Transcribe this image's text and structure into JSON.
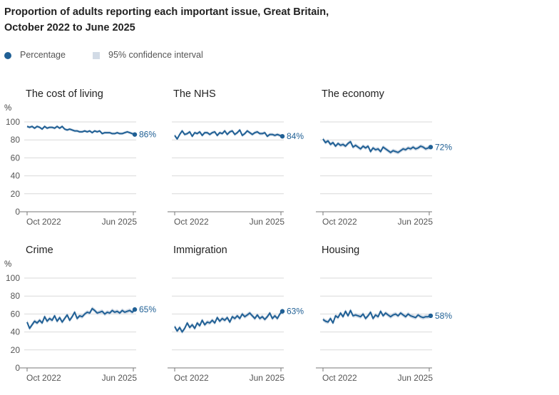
{
  "title_line1": "Proportion of adults reporting each important issue, Great Britain,",
  "title_line2": "October 2022 to June 2025",
  "legend": {
    "percentage": "Percentage",
    "ci": "95% confidence interval"
  },
  "colors": {
    "line": "#206095",
    "ci": "#d2dbe6",
    "grid": "#d9d9d9",
    "axis": "#777777",
    "label": "#206095"
  },
  "chart_data": [
    {
      "type": "line",
      "title": "The cost of living",
      "ylabel": "%",
      "yticks": [
        "0",
        "20",
        "40",
        "60",
        "80",
        "100"
      ],
      "ylim": [
        0,
        100
      ],
      "x_labels": [
        "Oct 2022",
        "Jun 2025"
      ],
      "end_label": "86%",
      "values": [
        95,
        94,
        95,
        93,
        95,
        94,
        92,
        95,
        93,
        94,
        94,
        93,
        95,
        93,
        95,
        92,
        91,
        92,
        91,
        90,
        90,
        89,
        89,
        90,
        89,
        90,
        88,
        90,
        89,
        90,
        87,
        88,
        88,
        88,
        87,
        87,
        88,
        87,
        87,
        88,
        89,
        88,
        87,
        86
      ],
      "ci_halfwidth": 1.5
    },
    {
      "type": "line",
      "title": "The NHS",
      "ylabel": "",
      "yticks": [
        "0",
        "20",
        "40",
        "60",
        "80",
        "100"
      ],
      "ylim": [
        0,
        100
      ],
      "x_labels": [
        "Oct 2022",
        "Jun 2025"
      ],
      "end_label": "84%",
      "values": [
        85,
        81,
        86,
        90,
        86,
        87,
        89,
        84,
        88,
        87,
        89,
        85,
        88,
        88,
        86,
        88,
        89,
        85,
        88,
        87,
        90,
        86,
        89,
        90,
        86,
        88,
        91,
        85,
        87,
        90,
        88,
        86,
        88,
        89,
        87,
        87,
        88,
        84,
        86,
        86,
        85,
        86,
        85,
        84
      ],
      "ci_halfwidth": 1.8
    },
    {
      "type": "line",
      "title": "The economy",
      "ylabel": "",
      "yticks": [
        "0",
        "20",
        "40",
        "60",
        "80",
        "100"
      ],
      "ylim": [
        0,
        100
      ],
      "x_labels": [
        "Oct 2022",
        "Jun 2025"
      ],
      "end_label": "72%",
      "values": [
        81,
        77,
        79,
        75,
        77,
        73,
        76,
        74,
        75,
        73,
        76,
        78,
        72,
        74,
        72,
        70,
        73,
        71,
        73,
        67,
        71,
        69,
        70,
        67,
        72,
        70,
        68,
        66,
        68,
        67,
        66,
        68,
        70,
        69,
        71,
        70,
        72,
        70,
        71,
        73,
        72,
        70,
        71,
        72
      ],
      "ci_halfwidth": 2.2
    },
    {
      "type": "line",
      "title": "Crime",
      "ylabel": "%",
      "yticks": [
        "0",
        "20",
        "40",
        "60",
        "80",
        "100"
      ],
      "ylim": [
        0,
        100
      ],
      "x_labels": [
        "Oct 2022",
        "Jun 2025"
      ],
      "end_label": "65%",
      "values": [
        51,
        44,
        48,
        52,
        50,
        53,
        50,
        57,
        52,
        55,
        53,
        58,
        52,
        56,
        51,
        55,
        59,
        53,
        57,
        62,
        55,
        58,
        57,
        60,
        62,
        61,
        66,
        64,
        61,
        62,
        63,
        60,
        62,
        61,
        64,
        62,
        63,
        61,
        64,
        62,
        63,
        64,
        62,
        65
      ],
      "ci_halfwidth": 2.3
    },
    {
      "type": "line",
      "title": "Immigration",
      "ylabel": "",
      "yticks": [
        "0",
        "20",
        "40",
        "60",
        "80",
        "100"
      ],
      "ylim": [
        0,
        100
      ],
      "x_labels": [
        "Oct 2022",
        "Jun 2025"
      ],
      "end_label": "63%",
      "values": [
        46,
        41,
        45,
        40,
        44,
        50,
        45,
        48,
        44,
        50,
        47,
        53,
        48,
        51,
        50,
        53,
        50,
        56,
        52,
        55,
        53,
        56,
        51,
        57,
        55,
        58,
        55,
        60,
        57,
        59,
        61,
        58,
        55,
        59,
        55,
        57,
        54,
        57,
        61,
        55,
        58,
        55,
        60,
        63
      ],
      "ci_halfwidth": 2.3
    },
    {
      "type": "line",
      "title": "Housing",
      "ylabel": "",
      "yticks": [
        "0",
        "20",
        "40",
        "60",
        "80",
        "100"
      ],
      "ylim": [
        0,
        100
      ],
      "x_labels": [
        "Oct 2022",
        "Jun 2025"
      ],
      "end_label": "58%",
      "values": [
        54,
        52,
        51,
        55,
        50,
        58,
        56,
        61,
        57,
        63,
        58,
        64,
        58,
        59,
        58,
        57,
        60,
        55,
        58,
        62,
        55,
        59,
        57,
        63,
        58,
        61,
        59,
        57,
        59,
        60,
        58,
        61,
        59,
        57,
        60,
        58,
        57,
        56,
        59,
        57,
        56,
        57,
        57,
        58
      ],
      "ci_halfwidth": 2.3
    }
  ]
}
